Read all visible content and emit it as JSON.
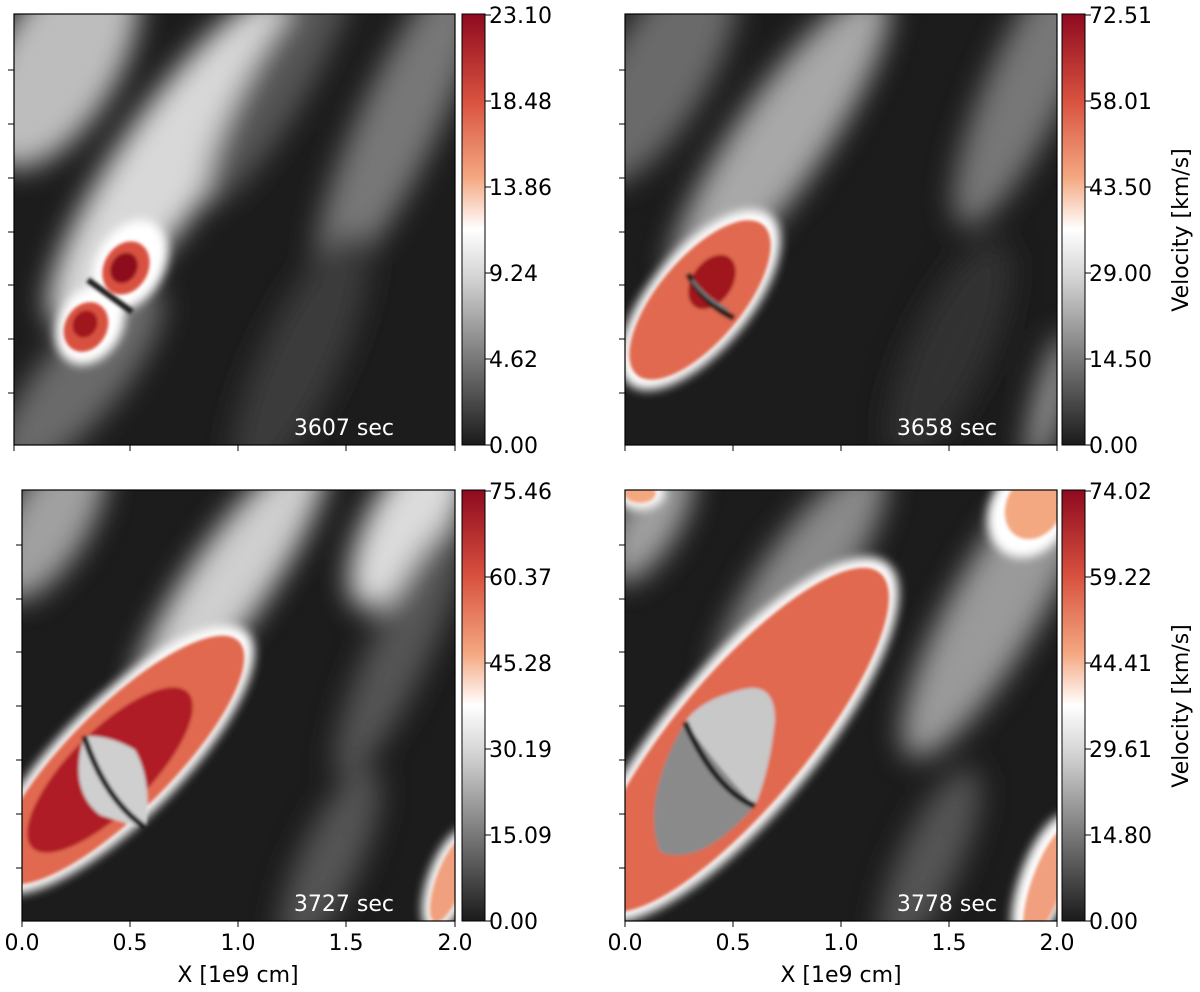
{
  "colorbar_colors": [
    "#1a1a1a",
    "#6f6f6f",
    "#d0d0d0",
    "#ffffff",
    "#f4a882",
    "#d8513f",
    "#8e0a1f"
  ],
  "chart_data": [
    {
      "type": "heatmap",
      "annotation": "3607 sec",
      "xlim": [
        0.0,
        2.0
      ],
      "xticks": [
        0.0,
        0.5,
        1.0,
        1.5,
        2.0
      ],
      "x_tick_labels": [],
      "xlabel": "",
      "colorbar_label": "",
      "colorbar_range": [
        0.0,
        23.1
      ],
      "colorbar_ticks": [
        "0.00",
        "4.62",
        "9.24",
        "13.86",
        "18.48",
        "23.10"
      ],
      "y_tick_labels_shown": false
    },
    {
      "type": "heatmap",
      "annotation": "3658 sec",
      "xlim": [
        0.0,
        2.0
      ],
      "xticks": [
        0.0,
        0.5,
        1.0,
        1.5,
        2.0
      ],
      "x_tick_labels": [],
      "xlabel": "",
      "colorbar_label": "Velocity [km/s]",
      "colorbar_range": [
        0.0,
        72.51
      ],
      "colorbar_ticks": [
        "0.00",
        "14.50",
        "29.00",
        "43.50",
        "58.01",
        "72.51"
      ],
      "y_tick_labels_shown": false
    },
    {
      "type": "heatmap",
      "annotation": "3727 sec",
      "xlim": [
        0.0,
        2.0
      ],
      "xticks": [
        0.0,
        0.5,
        1.0,
        1.5,
        2.0
      ],
      "x_tick_labels": [
        "0.0",
        "0.5",
        "1.0",
        "1.5",
        "2.0"
      ],
      "xlabel": "X [1e9 cm]",
      "colorbar_label": "",
      "colorbar_range": [
        0.0,
        75.46
      ],
      "colorbar_ticks": [
        "0.00",
        "15.09",
        "30.19",
        "45.28",
        "60.37",
        "75.46"
      ],
      "y_tick_labels_shown": false
    },
    {
      "type": "heatmap",
      "annotation": "3778 sec",
      "xlim": [
        0.0,
        2.0
      ],
      "xticks": [
        0.0,
        0.5,
        1.0,
        1.5,
        2.0
      ],
      "x_tick_labels": [
        "0.0",
        "0.5",
        "1.0",
        "1.5",
        "2.0"
      ],
      "xlabel": "X [1e9 cm]",
      "colorbar_label": "Velocity [km/s]",
      "colorbar_range": [
        0.0,
        74.02
      ],
      "colorbar_ticks": [
        "0.00",
        "14.80",
        "29.61",
        "44.41",
        "59.22",
        "74.02"
      ],
      "y_tick_labels_shown": false
    }
  ]
}
